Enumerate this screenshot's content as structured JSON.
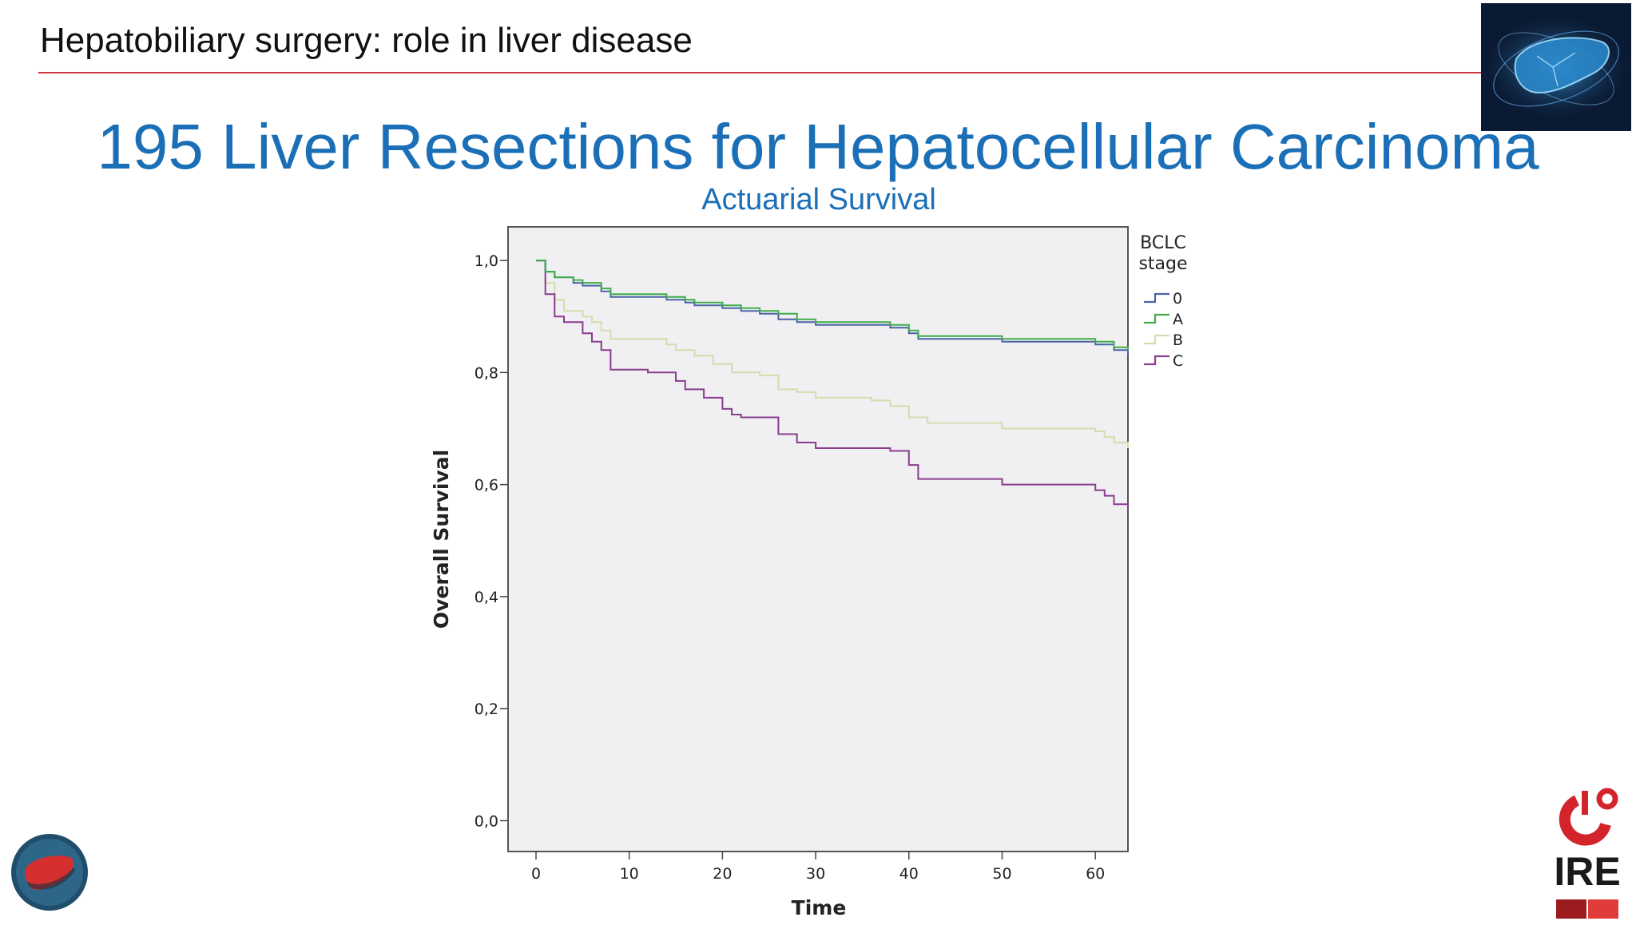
{
  "header": {
    "title": "Hepatobiliary surgery: role in liver disease"
  },
  "slide": {
    "title": "195 Liver Resections for Hepatocellular Carcinoma"
  },
  "logos": {
    "bottom_right_text": "IRE"
  },
  "colors": {
    "accent_red": "#c9383f",
    "title_blue": "#1a6fb7"
  },
  "chart_data": {
    "type": "line",
    "step": true,
    "title": "Actuarial Survival",
    "xlabel": "Time",
    "ylabel": "Overall Survival",
    "xlim": [
      -3,
      63.5
    ],
    "ylim": [
      -0.055,
      1.06
    ],
    "x_ticks": [
      0,
      10,
      20,
      30,
      40,
      50,
      60
    ],
    "x_tick_labels": [
      "0",
      "10",
      "20",
      "30",
      "40",
      "50",
      "60"
    ],
    "y_ticks": [
      0.0,
      0.2,
      0.4,
      0.6,
      0.8,
      1.0
    ],
    "y_tick_labels": [
      "0,0",
      "0,2",
      "0,4",
      "0,6",
      "0,8",
      "1,0"
    ],
    "legend_title": "BCLC stage",
    "legend_position": "right",
    "series": [
      {
        "name": "0",
        "color": "#4a63a8",
        "points": [
          [
            0,
            1.0
          ],
          [
            1,
            0.98
          ],
          [
            2,
            0.97
          ],
          [
            4,
            0.96
          ],
          [
            5,
            0.955
          ],
          [
            7,
            0.945
          ],
          [
            8,
            0.935
          ],
          [
            14,
            0.93
          ],
          [
            16,
            0.925
          ],
          [
            17,
            0.92
          ],
          [
            20,
            0.915
          ],
          [
            22,
            0.91
          ],
          [
            24,
            0.905
          ],
          [
            26,
            0.895
          ],
          [
            28,
            0.89
          ],
          [
            30,
            0.885
          ],
          [
            38,
            0.88
          ],
          [
            40,
            0.87
          ],
          [
            41,
            0.86
          ],
          [
            50,
            0.855
          ],
          [
            60,
            0.85
          ],
          [
            62,
            0.84
          ],
          [
            63.5,
            0.83
          ]
        ]
      },
      {
        "name": "A",
        "color": "#3fae4a",
        "points": [
          [
            0,
            1.0
          ],
          [
            1,
            0.98
          ],
          [
            2,
            0.97
          ],
          [
            4,
            0.965
          ],
          [
            5,
            0.96
          ],
          [
            7,
            0.95
          ],
          [
            8,
            0.94
          ],
          [
            14,
            0.935
          ],
          [
            16,
            0.93
          ],
          [
            17,
            0.925
          ],
          [
            20,
            0.92
          ],
          [
            22,
            0.915
          ],
          [
            24,
            0.91
          ],
          [
            26,
            0.905
          ],
          [
            28,
            0.895
          ],
          [
            30,
            0.89
          ],
          [
            38,
            0.885
          ],
          [
            40,
            0.875
          ],
          [
            41,
            0.865
          ],
          [
            50,
            0.86
          ],
          [
            60,
            0.855
          ],
          [
            62,
            0.845
          ],
          [
            63.5,
            0.84
          ]
        ]
      },
      {
        "name": "B",
        "color": "#d6dcae",
        "points": [
          [
            0,
            1.0
          ],
          [
            1,
            0.96
          ],
          [
            2,
            0.93
          ],
          [
            3,
            0.91
          ],
          [
            5,
            0.9
          ],
          [
            6,
            0.89
          ],
          [
            7,
            0.875
          ],
          [
            8,
            0.86
          ],
          [
            14,
            0.85
          ],
          [
            15,
            0.84
          ],
          [
            17,
            0.83
          ],
          [
            19,
            0.815
          ],
          [
            21,
            0.8
          ],
          [
            24,
            0.795
          ],
          [
            26,
            0.77
          ],
          [
            28,
            0.765
          ],
          [
            30,
            0.755
          ],
          [
            36,
            0.75
          ],
          [
            38,
            0.74
          ],
          [
            40,
            0.72
          ],
          [
            42,
            0.71
          ],
          [
            50,
            0.7
          ],
          [
            60,
            0.695
          ],
          [
            61,
            0.685
          ],
          [
            62,
            0.675
          ],
          [
            63.5,
            0.665
          ]
        ]
      },
      {
        "name": "C",
        "color": "#8a3d8e",
        "points": [
          [
            0,
            1.0
          ],
          [
            1,
            0.94
          ],
          [
            2,
            0.9
          ],
          [
            3,
            0.89
          ],
          [
            5,
            0.87
          ],
          [
            6,
            0.855
          ],
          [
            7,
            0.84
          ],
          [
            8,
            0.805
          ],
          [
            12,
            0.8
          ],
          [
            15,
            0.785
          ],
          [
            16,
            0.77
          ],
          [
            18,
            0.755
          ],
          [
            20,
            0.735
          ],
          [
            21,
            0.725
          ],
          [
            22,
            0.72
          ],
          [
            26,
            0.69
          ],
          [
            28,
            0.675
          ],
          [
            30,
            0.665
          ],
          [
            38,
            0.66
          ],
          [
            40,
            0.635
          ],
          [
            41,
            0.61
          ],
          [
            50,
            0.6
          ],
          [
            60,
            0.59
          ],
          [
            61,
            0.58
          ],
          [
            62,
            0.565
          ],
          [
            63.5,
            0.555
          ]
        ]
      }
    ]
  }
}
